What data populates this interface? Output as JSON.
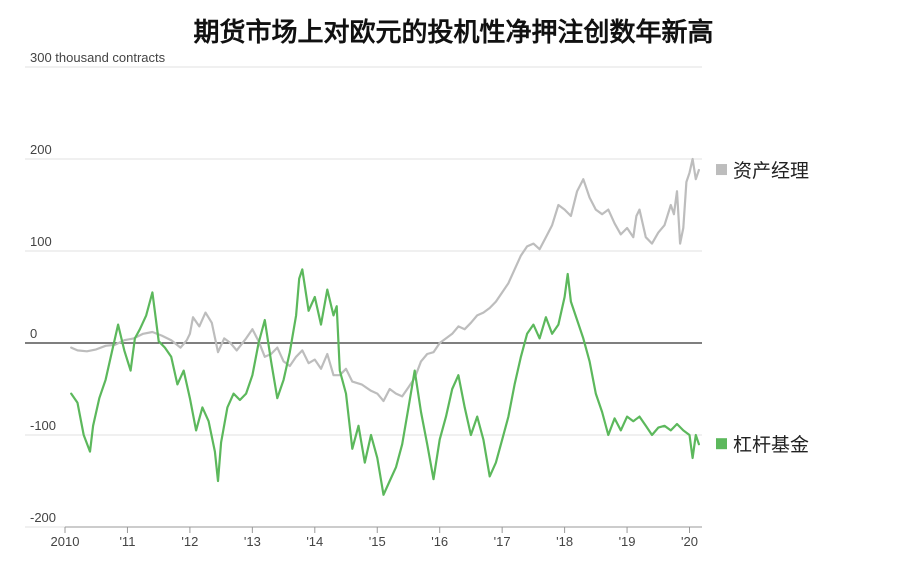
{
  "title": "期货市场上对欧元的投机性净押注创数年新高",
  "chart_data": {
    "type": "line",
    "title": "期货市场上对欧元的投机性净押注创数年新高",
    "unit_label": "300 thousand contracts",
    "ylim": [
      -200,
      300
    ],
    "xlim": [
      2010,
      2020.2
    ],
    "y_ticks": [
      {
        "value": 300,
        "label": "300 thousand contracts"
      },
      {
        "value": 200,
        "label": "200"
      },
      {
        "value": 100,
        "label": "100"
      },
      {
        "value": 0,
        "label": "0"
      },
      {
        "value": -100,
        "label": "-100"
      },
      {
        "value": -200,
        "label": "-200"
      }
    ],
    "x_ticks": [
      {
        "value": 2010,
        "label": "2010"
      },
      {
        "value": 2011,
        "label": "'11"
      },
      {
        "value": 2012,
        "label": "'12"
      },
      {
        "value": 2013,
        "label": "'13"
      },
      {
        "value": 2014,
        "label": "'14"
      },
      {
        "value": 2015,
        "label": "'15"
      },
      {
        "value": 2016,
        "label": "'16"
      },
      {
        "value": 2017,
        "label": "'17"
      },
      {
        "value": 2018,
        "label": "'18"
      },
      {
        "value": 2019,
        "label": "'19"
      },
      {
        "value": 2020,
        "label": "'20"
      }
    ],
    "grid": true,
    "legend": "right",
    "series": [
      {
        "name": "资产经理",
        "color": "#bdbdbd",
        "points": [
          [
            2010.1,
            -5
          ],
          [
            2010.2,
            -8
          ],
          [
            2010.35,
            -9
          ],
          [
            2010.5,
            -7
          ],
          [
            2010.65,
            -3
          ],
          [
            2010.8,
            -2
          ],
          [
            2010.95,
            3
          ],
          [
            2011.1,
            5
          ],
          [
            2011.25,
            10
          ],
          [
            2011.4,
            12
          ],
          [
            2011.55,
            8
          ],
          [
            2011.7,
            3
          ],
          [
            2011.85,
            -5
          ],
          [
            2011.95,
            3
          ],
          [
            2012.0,
            10
          ],
          [
            2012.05,
            28
          ],
          [
            2012.15,
            18
          ],
          [
            2012.25,
            33
          ],
          [
            2012.35,
            22
          ],
          [
            2012.45,
            -10
          ],
          [
            2012.55,
            5
          ],
          [
            2012.65,
            0
          ],
          [
            2012.75,
            -8
          ],
          [
            2012.9,
            5
          ],
          [
            2013.0,
            15
          ],
          [
            2013.1,
            2
          ],
          [
            2013.2,
            -15
          ],
          [
            2013.3,
            -12
          ],
          [
            2013.4,
            -5
          ],
          [
            2013.5,
            -20
          ],
          [
            2013.6,
            -25
          ],
          [
            2013.7,
            -15
          ],
          [
            2013.8,
            -8
          ],
          [
            2013.9,
            -22
          ],
          [
            2014.0,
            -18
          ],
          [
            2014.1,
            -28
          ],
          [
            2014.2,
            -12
          ],
          [
            2014.3,
            -35
          ],
          [
            2014.4,
            -35
          ],
          [
            2014.5,
            -28
          ],
          [
            2014.6,
            -42
          ],
          [
            2014.75,
            -45
          ],
          [
            2014.9,
            -52
          ],
          [
            2015.0,
            -55
          ],
          [
            2015.1,
            -63
          ],
          [
            2015.2,
            -50
          ],
          [
            2015.3,
            -55
          ],
          [
            2015.4,
            -58
          ],
          [
            2015.5,
            -48
          ],
          [
            2015.6,
            -38
          ],
          [
            2015.7,
            -20
          ],
          [
            2015.8,
            -12
          ],
          [
            2015.9,
            -10
          ],
          [
            2016.0,
            0
          ],
          [
            2016.1,
            5
          ],
          [
            2016.2,
            10
          ],
          [
            2016.3,
            18
          ],
          [
            2016.4,
            15
          ],
          [
            2016.5,
            22
          ],
          [
            2016.6,
            30
          ],
          [
            2016.7,
            33
          ],
          [
            2016.8,
            38
          ],
          [
            2016.9,
            45
          ],
          [
            2017.0,
            55
          ],
          [
            2017.1,
            65
          ],
          [
            2017.2,
            80
          ],
          [
            2017.3,
            95
          ],
          [
            2017.4,
            105
          ],
          [
            2017.5,
            108
          ],
          [
            2017.6,
            102
          ],
          [
            2017.7,
            115
          ],
          [
            2017.8,
            128
          ],
          [
            2017.9,
            150
          ],
          [
            2018.0,
            145
          ],
          [
            2018.1,
            138
          ],
          [
            2018.2,
            165
          ],
          [
            2018.3,
            178
          ],
          [
            2018.4,
            158
          ],
          [
            2018.5,
            145
          ],
          [
            2018.6,
            140
          ],
          [
            2018.7,
            145
          ],
          [
            2018.8,
            130
          ],
          [
            2018.9,
            118
          ],
          [
            2019.0,
            125
          ],
          [
            2019.1,
            115
          ],
          [
            2019.15,
            138
          ],
          [
            2019.2,
            145
          ],
          [
            2019.3,
            115
          ],
          [
            2019.4,
            108
          ],
          [
            2019.5,
            120
          ],
          [
            2019.6,
            128
          ],
          [
            2019.7,
            150
          ],
          [
            2019.75,
            140
          ],
          [
            2019.8,
            165
          ],
          [
            2019.85,
            108
          ],
          [
            2019.9,
            125
          ],
          [
            2019.95,
            175
          ],
          [
            2020.0,
            185
          ],
          [
            2020.05,
            200
          ],
          [
            2020.1,
            178
          ],
          [
            2020.15,
            188
          ]
        ]
      },
      {
        "name": "杠杆基金",
        "color": "#5cb85c",
        "points": [
          [
            2010.1,
            -55
          ],
          [
            2010.2,
            -65
          ],
          [
            2010.3,
            -100
          ],
          [
            2010.4,
            -118
          ],
          [
            2010.45,
            -90
          ],
          [
            2010.55,
            -60
          ],
          [
            2010.65,
            -40
          ],
          [
            2010.75,
            -10
          ],
          [
            2010.85,
            20
          ],
          [
            2010.95,
            -8
          ],
          [
            2011.05,
            -30
          ],
          [
            2011.12,
            5
          ],
          [
            2011.2,
            15
          ],
          [
            2011.3,
            30
          ],
          [
            2011.4,
            55
          ],
          [
            2011.5,
            2
          ],
          [
            2011.6,
            -5
          ],
          [
            2011.7,
            -15
          ],
          [
            2011.8,
            -45
          ],
          [
            2011.9,
            -30
          ],
          [
            2012.0,
            -60
          ],
          [
            2012.1,
            -95
          ],
          [
            2012.2,
            -70
          ],
          [
            2012.3,
            -85
          ],
          [
            2012.4,
            -118
          ],
          [
            2012.45,
            -150
          ],
          [
            2012.5,
            -108
          ],
          [
            2012.6,
            -70
          ],
          [
            2012.7,
            -55
          ],
          [
            2012.8,
            -62
          ],
          [
            2012.9,
            -55
          ],
          [
            2013.0,
            -35
          ],
          [
            2013.1,
            0
          ],
          [
            2013.2,
            25
          ],
          [
            2013.3,
            -20
          ],
          [
            2013.4,
            -60
          ],
          [
            2013.5,
            -40
          ],
          [
            2013.6,
            -10
          ],
          [
            2013.7,
            30
          ],
          [
            2013.75,
            70
          ],
          [
            2013.8,
            80
          ],
          [
            2013.9,
            35
          ],
          [
            2014.0,
            50
          ],
          [
            2014.1,
            20
          ],
          [
            2014.2,
            58
          ],
          [
            2014.3,
            30
          ],
          [
            2014.35,
            40
          ],
          [
            2014.4,
            -30
          ],
          [
            2014.5,
            -55
          ],
          [
            2014.6,
            -115
          ],
          [
            2014.7,
            -90
          ],
          [
            2014.8,
            -130
          ],
          [
            2014.9,
            -100
          ],
          [
            2015.0,
            -125
          ],
          [
            2015.1,
            -165
          ],
          [
            2015.2,
            -150
          ],
          [
            2015.3,
            -135
          ],
          [
            2015.4,
            -110
          ],
          [
            2015.5,
            -70
          ],
          [
            2015.6,
            -30
          ],
          [
            2015.7,
            -75
          ],
          [
            2015.8,
            -110
          ],
          [
            2015.9,
            -148
          ],
          [
            2016.0,
            -105
          ],
          [
            2016.1,
            -80
          ],
          [
            2016.2,
            -50
          ],
          [
            2016.3,
            -35
          ],
          [
            2016.4,
            -70
          ],
          [
            2016.5,
            -100
          ],
          [
            2016.6,
            -80
          ],
          [
            2016.7,
            -105
          ],
          [
            2016.8,
            -145
          ],
          [
            2016.9,
            -130
          ],
          [
            2017.0,
            -105
          ],
          [
            2017.1,
            -80
          ],
          [
            2017.2,
            -45
          ],
          [
            2017.3,
            -15
          ],
          [
            2017.4,
            10
          ],
          [
            2017.5,
            20
          ],
          [
            2017.6,
            5
          ],
          [
            2017.7,
            28
          ],
          [
            2017.8,
            10
          ],
          [
            2017.9,
            20
          ],
          [
            2018.0,
            50
          ],
          [
            2018.05,
            75
          ],
          [
            2018.1,
            45
          ],
          [
            2018.2,
            25
          ],
          [
            2018.3,
            5
          ],
          [
            2018.4,
            -20
          ],
          [
            2018.5,
            -55
          ],
          [
            2018.6,
            -75
          ],
          [
            2018.7,
            -100
          ],
          [
            2018.8,
            -82
          ],
          [
            2018.9,
            -95
          ],
          [
            2019.0,
            -80
          ],
          [
            2019.1,
            -85
          ],
          [
            2019.2,
            -80
          ],
          [
            2019.3,
            -90
          ],
          [
            2019.4,
            -100
          ],
          [
            2019.5,
            -92
          ],
          [
            2019.6,
            -90
          ],
          [
            2019.7,
            -95
          ],
          [
            2019.8,
            -88
          ],
          [
            2019.9,
            -95
          ],
          [
            2020.0,
            -100
          ],
          [
            2020.05,
            -125
          ],
          [
            2020.1,
            -100
          ],
          [
            2020.15,
            -110
          ]
        ]
      }
    ]
  }
}
